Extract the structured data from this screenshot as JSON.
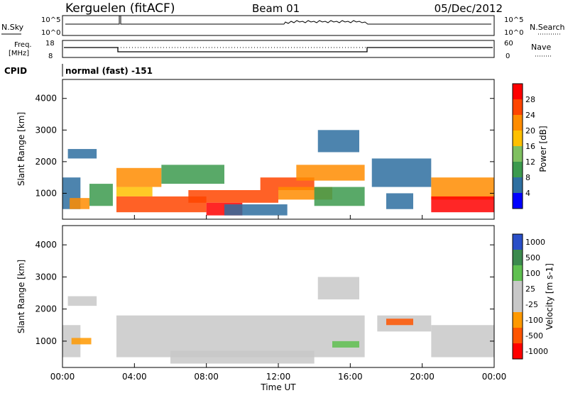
{
  "header": {
    "station": "Kerguelen (fitACF)",
    "beam": "Beam 01",
    "date": "05/Dec/2012"
  },
  "noise_panel": {
    "left_label": "N.Sky",
    "right_label": "N.Search",
    "left_ticks": [
      "10^5",
      "10^0"
    ],
    "right_ticks": [
      "10^5",
      "10^0"
    ]
  },
  "freq_panel": {
    "left_label_line1": "Freq.",
    "left_label_line2": "[MHz]",
    "right_label": "Nave",
    "left_ticks": [
      "18",
      "8"
    ],
    "right_ticks": [
      "60",
      "0"
    ]
  },
  "cpid": {
    "label": "CPID",
    "text": "normal (fast) -151"
  },
  "x_axis": {
    "label": "Time UT",
    "ticks": [
      "00:00",
      "04:00",
      "08:00",
      "12:00",
      "16:00",
      "20:00",
      "00:00"
    ]
  },
  "chart_data": [
    {
      "type": "heatmap",
      "name": "power",
      "ylabel": "Slant Range [km]",
      "ylim": [
        180,
        4600
      ],
      "yticks": [
        1000,
        2000,
        3000,
        4000
      ],
      "xlim_hours": [
        0,
        24
      ],
      "colorbar": {
        "label": "Power [dB]",
        "ticks": [
          "28",
          "24",
          "20",
          "16",
          "12",
          "8",
          "4"
        ],
        "colors": [
          "#ff0000",
          "#ff4500",
          "#ff8c00",
          "#ffc000",
          "#7fc060",
          "#3c9a4e",
          "#2e6fa0",
          "#0000ff"
        ]
      },
      "regions": [
        {
          "t": [
            0.0,
            1.0
          ],
          "r": [
            500,
            1500
          ],
          "c": "#2e6fa0"
        },
        {
          "t": [
            0.3,
            1.9
          ],
          "r": [
            2100,
            2400
          ],
          "c": "#2e6fa0"
        },
        {
          "t": [
            0.4,
            1.5
          ],
          "r": [
            500,
            850
          ],
          "c": "#ff8c00"
        },
        {
          "t": [
            1.5,
            2.8
          ],
          "r": [
            600,
            1300
          ],
          "c": "#3c9a4e"
        },
        {
          "t": [
            3.0,
            5.5
          ],
          "r": [
            1200,
            1800
          ],
          "c": "#ff8c00"
        },
        {
          "t": [
            3.0,
            5.0
          ],
          "r": [
            900,
            1200
          ],
          "c": "#ffc000"
        },
        {
          "t": [
            3.0,
            8.0
          ],
          "r": [
            400,
            900
          ],
          "c": "#ff4500"
        },
        {
          "t": [
            5.5,
            9.0
          ],
          "r": [
            1300,
            1900
          ],
          "c": "#3c9a4e"
        },
        {
          "t": [
            7.0,
            12.0
          ],
          "r": [
            700,
            1100
          ],
          "c": "#ff4500"
        },
        {
          "t": [
            8.0,
            10.0
          ],
          "r": [
            300,
            700
          ],
          "c": "#ff0000"
        },
        {
          "t": [
            9.0,
            12.5
          ],
          "r": [
            300,
            650
          ],
          "c": "#2e6fa0"
        },
        {
          "t": [
            11.0,
            14.0
          ],
          "r": [
            1100,
            1500
          ],
          "c": "#ff4500"
        },
        {
          "t": [
            12.0,
            15.0
          ],
          "r": [
            800,
            1200
          ],
          "c": "#ff8c00"
        },
        {
          "t": [
            13.0,
            16.8
          ],
          "r": [
            1400,
            1900
          ],
          "c": "#ff8c00"
        },
        {
          "t": [
            14.0,
            16.8
          ],
          "r": [
            600,
            1200
          ],
          "c": "#3c9a4e"
        },
        {
          "t": [
            14.2,
            16.5
          ],
          "r": [
            2300,
            3000
          ],
          "c": "#2e6fa0"
        },
        {
          "t": [
            17.2,
            20.5
          ],
          "r": [
            1200,
            2100
          ],
          "c": "#2e6fa0"
        },
        {
          "t": [
            18.0,
            19.5
          ],
          "r": [
            500,
            1000
          ],
          "c": "#2e6fa0"
        },
        {
          "t": [
            20.5,
            24.0
          ],
          "r": [
            800,
            1500
          ],
          "c": "#ff8c00"
        },
        {
          "t": [
            20.5,
            24.0
          ],
          "r": [
            400,
            900
          ],
          "c": "#ff0000"
        }
      ]
    },
    {
      "type": "heatmap",
      "name": "velocity",
      "ylabel": "Slant Range [km]",
      "ylim": [
        180,
        4600
      ],
      "yticks": [
        1000,
        2000,
        3000,
        4000
      ],
      "xlim_hours": [
        0,
        24
      ],
      "colorbar": {
        "label": "Velocity [m s-1]",
        "ticks": [
          "1000",
          "500",
          "100",
          "25",
          "-25",
          "-100",
          "-500",
          "-1000"
        ],
        "colors": [
          "#2a4fc8",
          "#3c8a4e",
          "#5fc050",
          "#c8c8c8",
          "#c8c8c8",
          "#ff9900",
          "#ff5500",
          "#ff0000"
        ]
      },
      "regions": [
        {
          "t": [
            0.0,
            1.0
          ],
          "r": [
            500,
            1500
          ],
          "c": "#c8c8c8"
        },
        {
          "t": [
            0.3,
            1.9
          ],
          "r": [
            2100,
            2400
          ],
          "c": "#c8c8c8"
        },
        {
          "t": [
            0.5,
            1.6
          ],
          "r": [
            900,
            1100
          ],
          "c": "#ff9900"
        },
        {
          "t": [
            3.0,
            16.8
          ],
          "r": [
            500,
            1800
          ],
          "c": "#c8c8c8"
        },
        {
          "t": [
            6.0,
            14.0
          ],
          "r": [
            300,
            700
          ],
          "c": "#c8c8c8"
        },
        {
          "t": [
            14.2,
            16.5
          ],
          "r": [
            2300,
            3000
          ],
          "c": "#c8c8c8"
        },
        {
          "t": [
            15.0,
            16.5
          ],
          "r": [
            800,
            1000
          ],
          "c": "#5fc050"
        },
        {
          "t": [
            17.5,
            20.5
          ],
          "r": [
            1300,
            1800
          ],
          "c": "#c8c8c8"
        },
        {
          "t": [
            18.0,
            19.5
          ],
          "r": [
            1500,
            1700
          ],
          "c": "#ff5500"
        },
        {
          "t": [
            20.5,
            24.0
          ],
          "r": [
            500,
            1500
          ],
          "c": "#c8c8c8"
        }
      ]
    }
  ]
}
